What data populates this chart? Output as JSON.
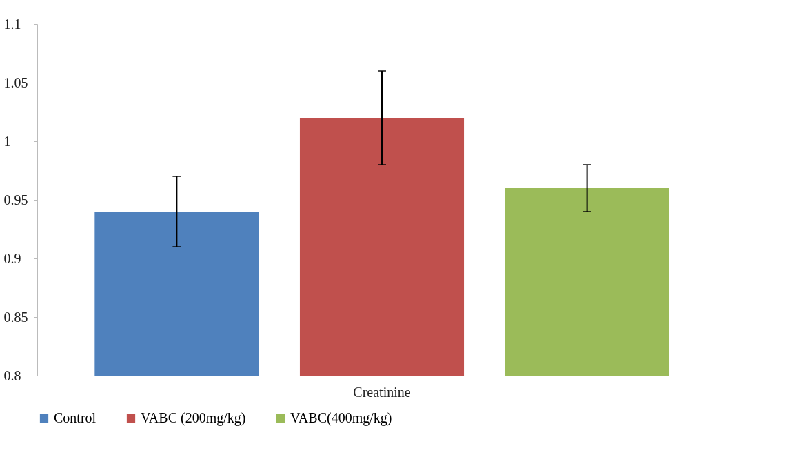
{
  "chart_data": {
    "type": "bar",
    "categories": [
      "Creatinine"
    ],
    "series": [
      {
        "name": "Control",
        "color": "#4f81bd",
        "values": [
          0.94
        ],
        "errors": [
          0.03
        ]
      },
      {
        "name": "VABC (200mg/kg)",
        "color": "#c0504d",
        "values": [
          1.02
        ],
        "errors": [
          0.04
        ]
      },
      {
        "name": "VABC(400mg/kg)",
        "color": "#9bbb59",
        "values": [
          0.96
        ],
        "errors": [
          0.02
        ]
      }
    ],
    "ylim": [
      0.8,
      1.1
    ],
    "yticks": [
      0.8,
      0.85,
      0.9,
      0.95,
      1,
      1.05,
      1.1
    ],
    "grid": false,
    "legend": "bottom"
  }
}
